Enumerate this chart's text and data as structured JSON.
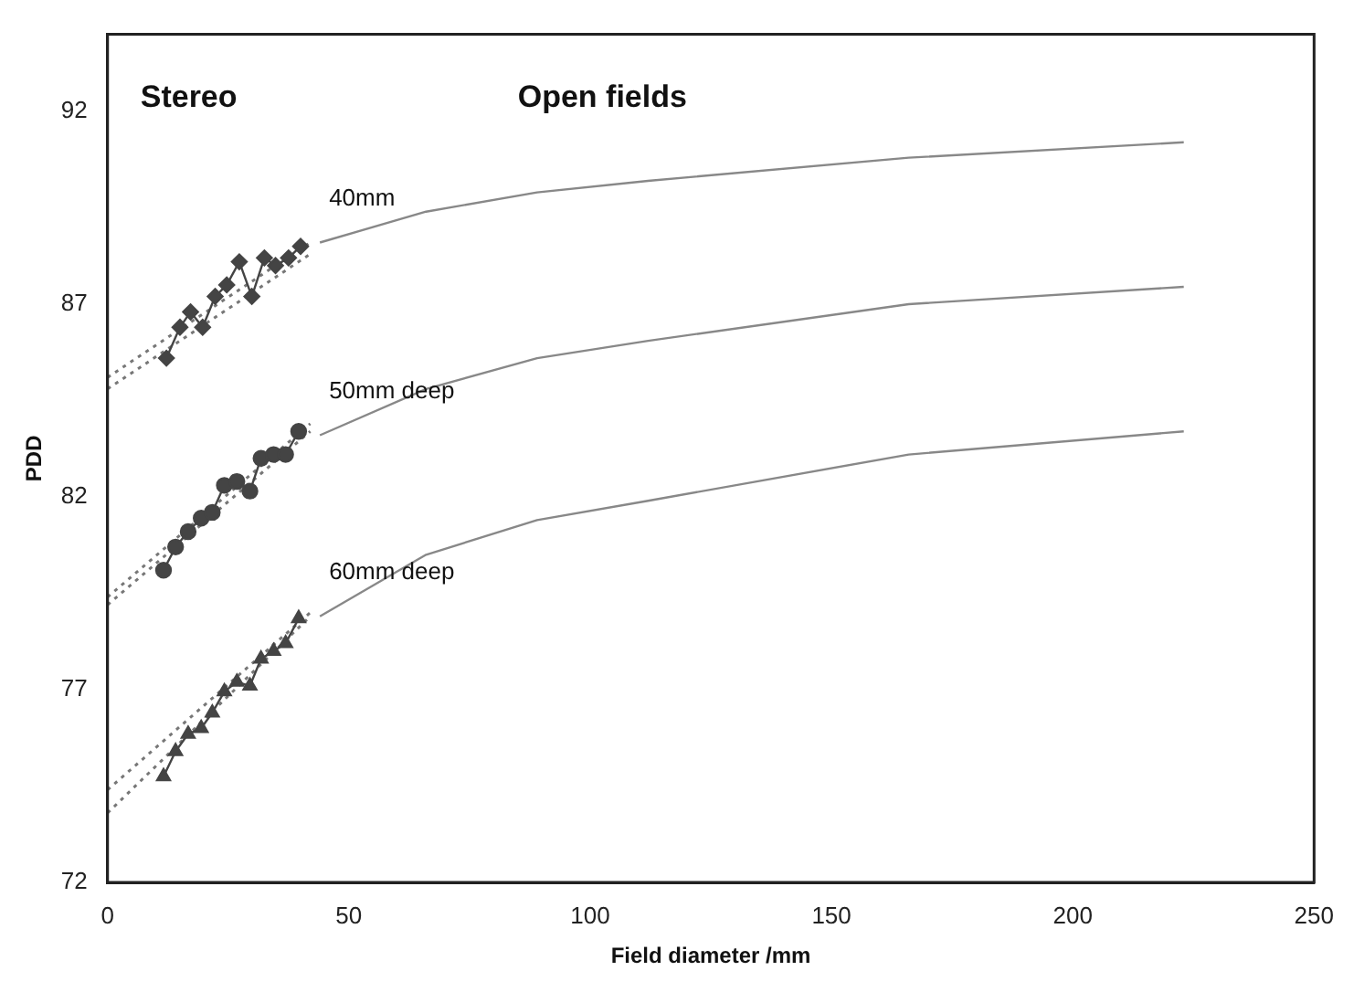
{
  "chart_data": {
    "type": "line",
    "xlabel": "Field diameter /mm",
    "ylabel": "PDD",
    "xlim": [
      0,
      250
    ],
    "xticks": [
      0,
      50,
      100,
      150,
      200,
      250
    ],
    "ylim": [
      72,
      94
    ],
    "yticks": [
      72,
      77,
      82,
      87,
      92
    ],
    "grid": false,
    "legend": false,
    "annotations": [
      "Stereo",
      "Open fields"
    ],
    "series": [
      {
        "name": "40mm",
        "color": "#888888",
        "marker": "none",
        "line_style": "solid",
        "x": [
          44,
          66,
          89,
          112,
          166,
          223
        ],
        "values": [
          88.6,
          89.4,
          89.9,
          90.2,
          90.8,
          91.2
        ]
      },
      {
        "name": "50mm deep",
        "color": "#888888",
        "marker": "none",
        "line_style": "solid",
        "x": [
          44,
          66,
          89,
          112,
          166,
          223
        ],
        "values": [
          83.6,
          84.8,
          85.6,
          86.05,
          87.0,
          87.45
        ]
      },
      {
        "name": "60mm deep",
        "color": "#888888",
        "marker": "none",
        "line_style": "solid",
        "x": [
          44,
          66,
          89,
          112,
          166,
          223
        ],
        "values": [
          78.9,
          80.5,
          81.4,
          81.9,
          83.1,
          83.7
        ]
      },
      {
        "color": "#444444",
        "marker": "diamond",
        "line_style": "solid",
        "x": [
          12.2,
          15.0,
          17.2,
          19.7,
          22.3,
          24.7,
          27.3,
          29.9,
          32.5,
          34.8,
          37.5,
          40.0
        ],
        "values": [
          85.6,
          86.4,
          86.8,
          86.4,
          87.2,
          87.5,
          88.1,
          87.2,
          88.2,
          88.0,
          88.2,
          88.5
        ]
      },
      {
        "color": "#444444",
        "marker": "circle",
        "line_style": "solid",
        "x": [
          11.6,
          14.1,
          16.7,
          19.4,
          21.7,
          24.2,
          26.8,
          29.5,
          31.8,
          34.4,
          36.9,
          39.6
        ],
        "values": [
          80.1,
          80.7,
          81.1,
          81.45,
          81.6,
          82.3,
          82.4,
          82.15,
          83.0,
          83.1,
          83.1,
          83.7
        ]
      },
      {
        "color": "#444444",
        "marker": "triangle",
        "line_style": "solid",
        "x": [
          11.6,
          14.1,
          16.7,
          19.4,
          21.7,
          24.2,
          26.8,
          29.5,
          31.8,
          34.4,
          36.9,
          39.6
        ],
        "values": [
          74.75,
          75.4,
          75.85,
          76.0,
          76.4,
          76.95,
          77.2,
          77.1,
          77.8,
          78.0,
          78.2,
          78.85
        ]
      },
      {
        "color": "#777777",
        "marker": "none",
        "line_style": "dotted",
        "x": [
          0,
          42
        ],
        "values": [
          85.1,
          88.6
        ]
      },
      {
        "color": "#777777",
        "marker": "none",
        "line_style": "dotted",
        "x": [
          0,
          42
        ],
        "values": [
          84.8,
          88.3
        ]
      },
      {
        "color": "#777777",
        "marker": "none",
        "line_style": "dotted",
        "x": [
          0,
          42
        ],
        "values": [
          79.4,
          83.9
        ]
      },
      {
        "color": "#777777",
        "marker": "none",
        "line_style": "dotted",
        "x": [
          0,
          42
        ],
        "values": [
          79.2,
          83.7
        ]
      },
      {
        "color": "#777777",
        "marker": "none",
        "line_style": "dotted",
        "x": [
          0,
          42
        ],
        "values": [
          74.4,
          79.0
        ]
      },
      {
        "color": "#777777",
        "marker": "none",
        "line_style": "dotted",
        "x": [
          0,
          42
        ],
        "values": [
          73.8,
          78.9
        ]
      }
    ]
  }
}
